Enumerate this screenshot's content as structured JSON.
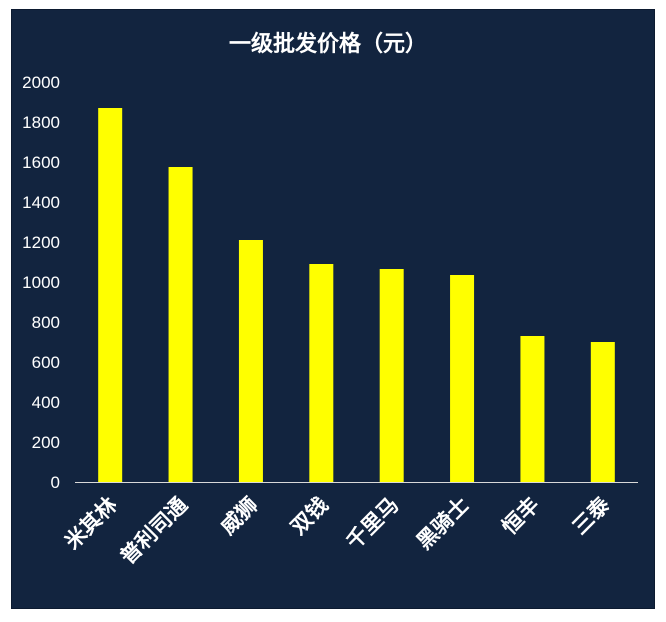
{
  "chart_data": {
    "type": "bar",
    "title": "一级批发价格（元）",
    "categories": [
      "米其林",
      "普利司通",
      "威狮",
      "双钱",
      "千里马",
      "黑骑士",
      "恒丰",
      "三泰"
    ],
    "values": [
      1870,
      1575,
      1210,
      1090,
      1065,
      1035,
      730,
      700
    ],
    "ylim": [
      0,
      2000
    ],
    "yticks": [
      0,
      200,
      400,
      600,
      800,
      1000,
      1200,
      1400,
      1600,
      1800,
      2000
    ],
    "xlabel": "",
    "ylabel": "",
    "grid": false,
    "colors": {
      "background": "#12243f",
      "bar": "#ffff00",
      "text": "#ffffff",
      "axis": "#d9d9d9"
    }
  }
}
